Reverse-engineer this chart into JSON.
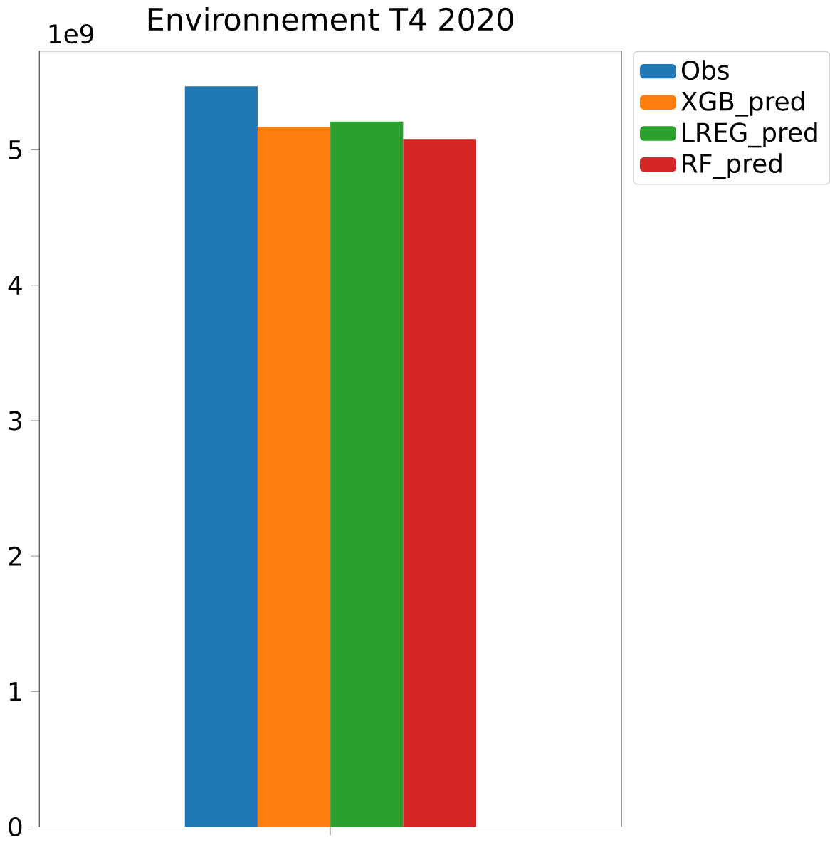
{
  "chart_data": {
    "type": "bar",
    "title": "Environnement T4 2020",
    "categories": [
      null
    ],
    "series": [
      {
        "name": "Obs",
        "color": "#1f77b4",
        "values": [
          5.47
        ]
      },
      {
        "name": "XGB_pred",
        "color": "#ff7f0e",
        "values": [
          5.17
        ]
      },
      {
        "name": "LREG_pred",
        "color": "#2ca02c",
        "values": [
          5.21
        ]
      },
      {
        "name": "RF_pred",
        "color": "#d62728",
        "values": [
          5.08
        ]
      }
    ],
    "ylim": [
      0,
      5.73
    ],
    "yticks": [
      0,
      1,
      2,
      3,
      4,
      5
    ],
    "annotations": [
      "1e9"
    ],
    "legend": "top right"
  }
}
